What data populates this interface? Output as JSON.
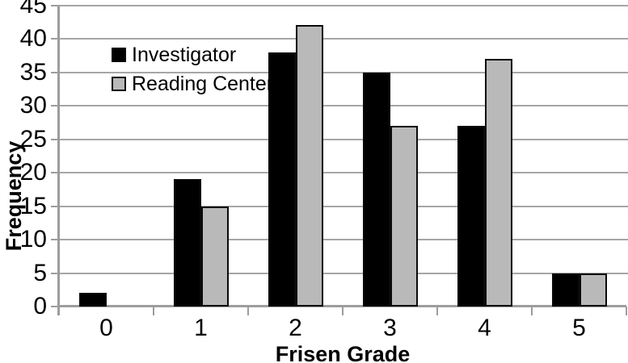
{
  "chart_data": {
    "type": "bar",
    "title": "",
    "xlabel": "Frisen Grade",
    "ylabel": "Frequency",
    "categories": [
      "0",
      "1",
      "2",
      "3",
      "4",
      "5"
    ],
    "series": [
      {
        "name": "Investigator",
        "color": "#000000",
        "values": [
          2,
          19,
          38,
          35,
          27,
          5
        ]
      },
      {
        "name": "Reading Center",
        "color": "#b9b9b9",
        "values": [
          0,
          15,
          42,
          27,
          37,
          5
        ]
      }
    ],
    "ylim": [
      0,
      45
    ],
    "yticks": [
      0,
      5,
      10,
      15,
      20,
      25,
      30,
      35,
      40,
      45
    ],
    "grid": true,
    "legend_position": "inside-top-left"
  },
  "colors": {
    "background": "#ffffff",
    "gridline": "#a6a6a6",
    "axis": "#9d9d9d",
    "text": "#000000",
    "bar_border": "#0a0a0a",
    "investigator": "#000000",
    "reading_center": "#b9b9b9"
  }
}
